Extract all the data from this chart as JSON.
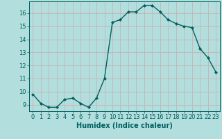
{
  "x": [
    0,
    1,
    2,
    3,
    4,
    5,
    6,
    7,
    8,
    9,
    10,
    11,
    12,
    13,
    14,
    15,
    16,
    17,
    18,
    19,
    20,
    21,
    22,
    23
  ],
  "y": [
    9.8,
    9.1,
    8.8,
    8.8,
    9.4,
    9.5,
    9.1,
    8.8,
    9.5,
    11.0,
    15.3,
    15.5,
    16.1,
    16.1,
    16.6,
    16.6,
    16.1,
    15.5,
    15.2,
    15.0,
    14.9,
    13.3,
    12.6,
    11.5
  ],
  "line_color": "#006060",
  "marker": "D",
  "marker_size": 2.0,
  "bg_color": "#b2dede",
  "grid_color": "#c8b4b4",
  "xlabel": "Humidex (Indice chaleur)",
  "ylabel_ticks": [
    9,
    10,
    11,
    12,
    13,
    14,
    15,
    16
  ],
  "xlabel_ticks": [
    0,
    1,
    2,
    3,
    4,
    5,
    6,
    7,
    8,
    9,
    10,
    11,
    12,
    13,
    14,
    15,
    16,
    17,
    18,
    19,
    20,
    21,
    22,
    23
  ],
  "ylim": [
    8.5,
    16.9
  ],
  "xlim": [
    -0.5,
    23.5
  ],
  "tick_color": "#006060",
  "font_color": "#006060",
  "label_fontsize": 7.0,
  "tick_fontsize": 6.0,
  "linewidth": 1.0
}
